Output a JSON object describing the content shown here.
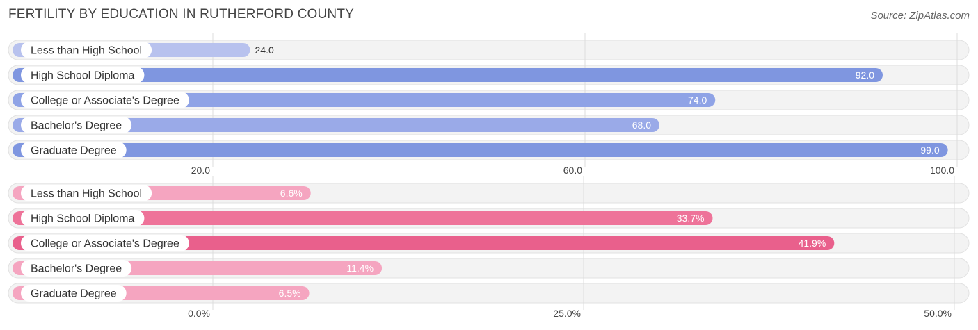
{
  "title": "FERTILITY BY EDUCATION IN RUTHERFORD COUNTY",
  "source": "Source: ZipAtlas.com",
  "chart_data": [
    {
      "type": "bar",
      "orientation": "horizontal",
      "categories": [
        "Less than High School",
        "High School Diploma",
        "College or Associate's Degree",
        "Bachelor's Degree",
        "Graduate Degree"
      ],
      "values": [
        24.0,
        92.0,
        74.0,
        68.0,
        99.0
      ],
      "value_labels": [
        "24.0",
        "92.0",
        "74.0",
        "68.0",
        "99.0"
      ],
      "xlim": [
        0,
        100
      ],
      "ticks": [
        20,
        60,
        100
      ],
      "tick_labels": [
        "20.0",
        "60.0",
        "100.0"
      ],
      "colors": [
        "#b8c2ee",
        "#7f96e0",
        "#8fa3e6",
        "#9aaae8",
        "#7f96e0"
      ],
      "grid": true
    },
    {
      "type": "bar",
      "orientation": "horizontal",
      "categories": [
        "Less than High School",
        "High School Diploma",
        "College or Associate's Degree",
        "Bachelor's Degree",
        "Graduate Degree"
      ],
      "values": [
        6.6,
        33.7,
        41.9,
        11.4,
        6.5
      ],
      "value_labels": [
        "6.6%",
        "33.7%",
        "41.9%",
        "11.4%",
        "6.5%"
      ],
      "xlim": [
        -0.005,
        50
      ],
      "ticks": [
        0,
        25,
        50
      ],
      "tick_labels": [
        "0.0%",
        "25.0%",
        "50.0%"
      ],
      "colors": [
        "#f5a5c0",
        "#ee7399",
        "#e9608c",
        "#f5a5c0",
        "#f5a5c0"
      ],
      "grid": true
    }
  ]
}
